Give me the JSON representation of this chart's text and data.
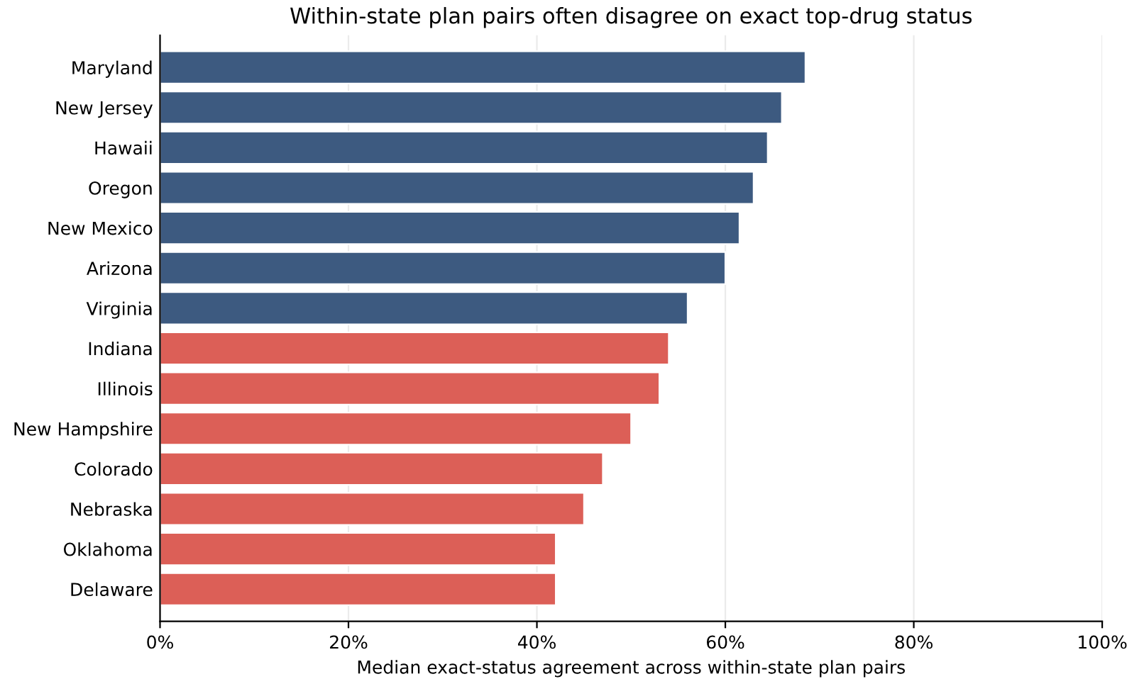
{
  "chart_data": {
    "type": "bar",
    "orientation": "horizontal",
    "title": "Within-state plan pairs often disagree on exact top-drug status",
    "xlabel": "Median exact-status agreement across within-state plan pairs",
    "categories": [
      "Maryland",
      "New Jersey",
      "Hawaii",
      "Oregon",
      "New Mexico",
      "Arizona",
      "Virginia",
      "Indiana",
      "Illinois",
      "New Hampshire",
      "Colorado",
      "Nebraska",
      "Oklahoma",
      "Delaware"
    ],
    "values": [
      68.5,
      66.0,
      64.5,
      63.0,
      61.5,
      60.0,
      56.0,
      54.0,
      53.0,
      50.0,
      47.0,
      45.0,
      42.0,
      42.0
    ],
    "colors": [
      "#3d5a80",
      "#3d5a80",
      "#3d5a80",
      "#3d5a80",
      "#3d5a80",
      "#3d5a80",
      "#3d5a80",
      "#dc5f57",
      "#dc5f57",
      "#dc5f57",
      "#dc5f57",
      "#dc5f57",
      "#dc5f57",
      "#dc5f57"
    ],
    "xlim": [
      0,
      100
    ],
    "xticks": [
      {
        "value": 0,
        "label": "0%"
      },
      {
        "value": 20,
        "label": "20%"
      },
      {
        "value": 40,
        "label": "40%"
      },
      {
        "value": 60,
        "label": "60%"
      },
      {
        "value": 80,
        "label": "80%"
      },
      {
        "value": 100,
        "label": "100%"
      }
    ],
    "grid": "x",
    "legend": false
  }
}
